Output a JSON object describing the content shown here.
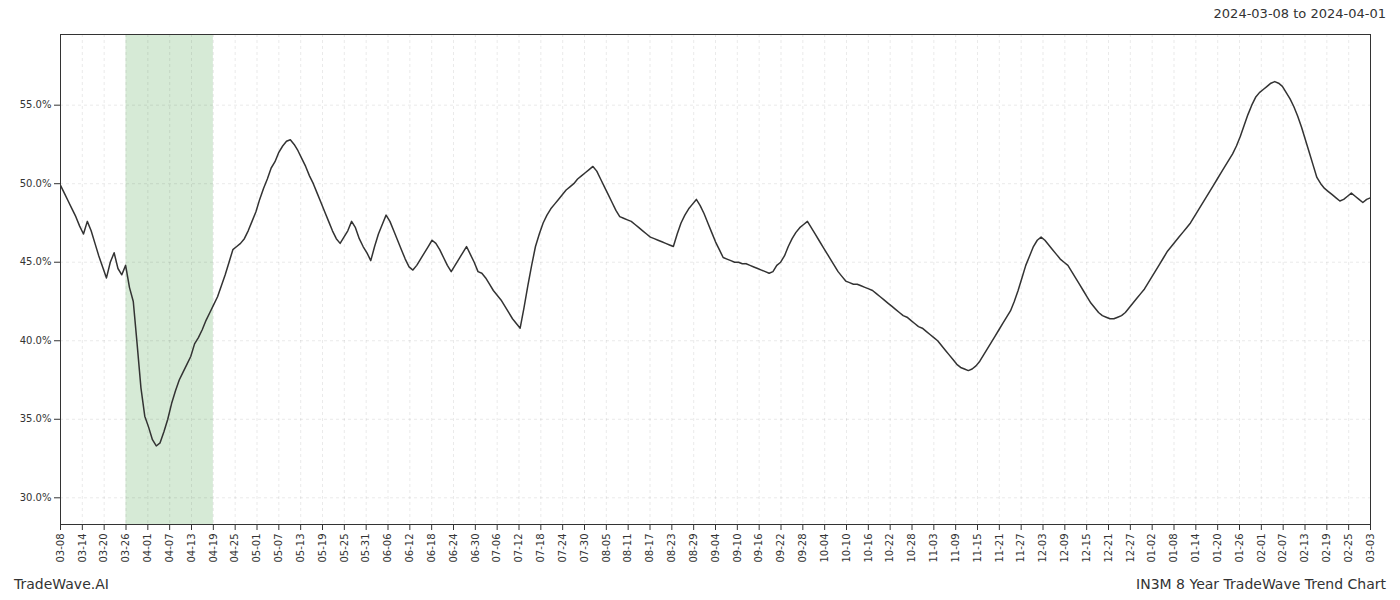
{
  "chart_data": {
    "type": "line",
    "title": "2024-03-08 to 2024-04-01",
    "annotations": [
      "TradeWave.AI",
      "IN3M 8 Year TradeWave Trend Chart"
    ],
    "grid": true,
    "highlight": {
      "x": [
        17.1,
        39.9
      ],
      "color": "#d6ead6"
    },
    "xlim": [
      0,
      342
    ],
    "xticks": [
      {
        "value": 0,
        "label": "03-08"
      },
      {
        "value": 5.7,
        "label": "03-14"
      },
      {
        "value": 11.4,
        "label": "03-20"
      },
      {
        "value": 17.1,
        "label": "03-26"
      },
      {
        "value": 22.8,
        "label": "04-01"
      },
      {
        "value": 28.5,
        "label": "04-07"
      },
      {
        "value": 34.2,
        "label": "04-13"
      },
      {
        "value": 39.9,
        "label": "04-19"
      },
      {
        "value": 45.6,
        "label": "04-25"
      },
      {
        "value": 51.3,
        "label": "05-01"
      },
      {
        "value": 57,
        "label": "05-07"
      },
      {
        "value": 62.7,
        "label": "05-13"
      },
      {
        "value": 68.4,
        "label": "05-19"
      },
      {
        "value": 74.1,
        "label": "05-25"
      },
      {
        "value": 79.8,
        "label": "05-31"
      },
      {
        "value": 85.5,
        "label": "06-06"
      },
      {
        "value": 91.2,
        "label": "06-12"
      },
      {
        "value": 96.9,
        "label": "06-18"
      },
      {
        "value": 102.6,
        "label": "06-24"
      },
      {
        "value": 108.3,
        "label": "06-30"
      },
      {
        "value": 114,
        "label": "07-06"
      },
      {
        "value": 119.7,
        "label": "07-12"
      },
      {
        "value": 125.4,
        "label": "07-18"
      },
      {
        "value": 131.1,
        "label": "07-24"
      },
      {
        "value": 136.8,
        "label": "07-30"
      },
      {
        "value": 142.5,
        "label": "08-05"
      },
      {
        "value": 148.2,
        "label": "08-11"
      },
      {
        "value": 153.9,
        "label": "08-17"
      },
      {
        "value": 159.6,
        "label": "08-23"
      },
      {
        "value": 165.3,
        "label": "08-29"
      },
      {
        "value": 171,
        "label": "09-04"
      },
      {
        "value": 176.7,
        "label": "09-10"
      },
      {
        "value": 182.4,
        "label": "09-16"
      },
      {
        "value": 188.1,
        "label": "09-22"
      },
      {
        "value": 193.8,
        "label": "09-28"
      },
      {
        "value": 199.5,
        "label": "10-04"
      },
      {
        "value": 205.2,
        "label": "10-10"
      },
      {
        "value": 210.9,
        "label": "10-16"
      },
      {
        "value": 216.6,
        "label": "10-22"
      },
      {
        "value": 222.3,
        "label": "10-28"
      },
      {
        "value": 228,
        "label": "11-03"
      },
      {
        "value": 233.7,
        "label": "11-09"
      },
      {
        "value": 239.4,
        "label": "11-15"
      },
      {
        "value": 245.1,
        "label": "11-21"
      },
      {
        "value": 250.8,
        "label": "11-27"
      },
      {
        "value": 256.5,
        "label": "12-03"
      },
      {
        "value": 262.2,
        "label": "12-09"
      },
      {
        "value": 267.9,
        "label": "12-15"
      },
      {
        "value": 273.6,
        "label": "12-21"
      },
      {
        "value": 279.3,
        "label": "12-27"
      },
      {
        "value": 285,
        "label": "01-02"
      },
      {
        "value": 290.7,
        "label": "01-08"
      },
      {
        "value": 296.4,
        "label": "01-14"
      },
      {
        "value": 302.1,
        "label": "01-20"
      },
      {
        "value": 307.8,
        "label": "01-26"
      },
      {
        "value": 313.5,
        "label": "02-01"
      },
      {
        "value": 319.2,
        "label": "02-07"
      },
      {
        "value": 324.9,
        "label": "02-13"
      },
      {
        "value": 330.6,
        "label": "02-19"
      },
      {
        "value": 336.3,
        "label": "02-25"
      },
      {
        "value": 342,
        "label": "03-03"
      }
    ],
    "ylim": [
      0.283,
      0.595
    ],
    "yticks": [
      {
        "value": 0.3,
        "label": "30.0%"
      },
      {
        "value": 0.35,
        "label": "35.0%"
      },
      {
        "value": 0.4,
        "label": "40.0%"
      },
      {
        "value": 0.45,
        "label": "45.0%"
      },
      {
        "value": 0.5,
        "label": "50.0%"
      },
      {
        "value": 0.55,
        "label": "55.0%"
      }
    ],
    "x": [
      0,
      1,
      2,
      3,
      4,
      5,
      6,
      7,
      8,
      9,
      10,
      11,
      12,
      13,
      14,
      15,
      16,
      17,
      18,
      19,
      20,
      21,
      22,
      23,
      24,
      25,
      26,
      27,
      28,
      29,
      30,
      31,
      32,
      33,
      34,
      35,
      36,
      37,
      38,
      39,
      40,
      41,
      42,
      43,
      44,
      45,
      46,
      47,
      48,
      49,
      50,
      51,
      52,
      53,
      54,
      55,
      56,
      57,
      58,
      59,
      60,
      61,
      62,
      63,
      64,
      65,
      66,
      67,
      68,
      69,
      70,
      71,
      72,
      73,
      74,
      75,
      76,
      77,
      78,
      79,
      80,
      81,
      82,
      83,
      84,
      85,
      86,
      87,
      88,
      89,
      90,
      91,
      92,
      93,
      94,
      95,
      96,
      97,
      98,
      99,
      100,
      101,
      102,
      103,
      104,
      105,
      106,
      107,
      108,
      109,
      110,
      111,
      112,
      113,
      114,
      115,
      116,
      117,
      118,
      119,
      120,
      121,
      122,
      123,
      124,
      125,
      126,
      127,
      128,
      129,
      130,
      131,
      132,
      133,
      134,
      135,
      136,
      137,
      138,
      139,
      140,
      141,
      142,
      143,
      144,
      145,
      146,
      147,
      148,
      149,
      150,
      151,
      152,
      153,
      154,
      155,
      156,
      157,
      158,
      159,
      160,
      161,
      162,
      163,
      164,
      165,
      166,
      167,
      168,
      169,
      170,
      171,
      172,
      173,
      174,
      175,
      176,
      177,
      178,
      179,
      180,
      181,
      182,
      183,
      184,
      185,
      186,
      187,
      188,
      189,
      190,
      191,
      192,
      193,
      194,
      195,
      196,
      197,
      198,
      199,
      200,
      201,
      202,
      203,
      204,
      205,
      206,
      207,
      208,
      209,
      210,
      211,
      212,
      213,
      214,
      215,
      216,
      217,
      218,
      219,
      220,
      221,
      222,
      223,
      224,
      225,
      226,
      227,
      228,
      229,
      230,
      231,
      232,
      233,
      234,
      235,
      236,
      237,
      238,
      239,
      240,
      241,
      242,
      243,
      244,
      245,
      246,
      247,
      248,
      249,
      250,
      251,
      252,
      253,
      254,
      255,
      256,
      257,
      258,
      259,
      260,
      261,
      262,
      263,
      264,
      265,
      266,
      267,
      268,
      269,
      270,
      271,
      272,
      273,
      274,
      275,
      276,
      277,
      278,
      279,
      280,
      281,
      282,
      283,
      284,
      285,
      286,
      287,
      288,
      289,
      290,
      291,
      292,
      293,
      294,
      295,
      296,
      297,
      298,
      299,
      300,
      301,
      302,
      303,
      304,
      305,
      306,
      307,
      308,
      309,
      310,
      311,
      312,
      313,
      314,
      315,
      316,
      317,
      318,
      319,
      320,
      321,
      322,
      323,
      324,
      325,
      326,
      327,
      328,
      329,
      330,
      331,
      332,
      333,
      334,
      335,
      336,
      337,
      338,
      339,
      340,
      341,
      342
    ],
    "values": [
      0.499,
      0.494,
      0.489,
      0.484,
      0.479,
      0.473,
      0.468,
      0.476,
      0.47,
      0.462,
      0.454,
      0.447,
      0.44,
      0.45,
      0.456,
      0.446,
      0.442,
      0.448,
      0.434,
      0.425,
      0.398,
      0.37,
      0.352,
      0.345,
      0.337,
      0.333,
      0.335,
      0.342,
      0.35,
      0.36,
      0.368,
      0.375,
      0.38,
      0.385,
      0.39,
      0.398,
      0.402,
      0.407,
      0.413,
      0.418,
      0.423,
      0.428,
      0.435,
      0.442,
      0.45,
      0.458,
      0.46,
      0.462,
      0.465,
      0.47,
      0.476,
      0.482,
      0.49,
      0.497,
      0.503,
      0.51,
      0.514,
      0.52,
      0.524,
      0.527,
      0.528,
      0.525,
      0.521,
      0.516,
      0.511,
      0.505,
      0.5,
      0.494,
      0.488,
      0.482,
      0.476,
      0.47,
      0.465,
      0.462,
      0.466,
      0.47,
      0.476,
      0.472,
      0.465,
      0.46,
      0.456,
      0.451,
      0.46,
      0.468,
      0.474,
      0.48,
      0.476,
      0.47,
      0.464,
      0.458,
      0.452,
      0.447,
      0.445,
      0.448,
      0.452,
      0.456,
      0.46,
      0.464,
      0.462,
      0.458,
      0.453,
      0.448,
      0.444,
      0.448,
      0.452,
      0.456,
      0.46,
      0.455,
      0.45,
      0.444,
      0.443,
      0.44,
      0.436,
      0.432,
      0.429,
      0.426,
      0.422,
      0.418,
      0.414,
      0.411,
      0.408,
      0.421,
      0.435,
      0.448,
      0.46,
      0.468,
      0.475,
      0.48,
      0.484,
      0.487,
      0.49,
      0.493,
      0.496,
      0.498,
      0.5,
      0.503,
      0.505,
      0.507,
      0.509,
      0.511,
      0.508,
      0.503,
      0.498,
      0.493,
      0.488,
      0.483,
      0.479,
      0.478,
      0.477,
      0.476,
      0.474,
      0.472,
      0.47,
      0.468,
      0.466,
      0.465,
      0.464,
      0.463,
      0.462,
      0.461,
      0.46,
      0.468,
      0.475,
      0.48,
      0.484,
      0.487,
      0.49,
      0.486,
      0.481,
      0.475,
      0.469,
      0.463,
      0.458,
      0.453,
      0.452,
      0.451,
      0.45,
      0.45,
      0.449,
      0.449,
      0.448,
      0.447,
      0.446,
      0.445,
      0.444,
      0.443,
      0.444,
      0.448,
      0.45,
      0.454,
      0.46,
      0.465,
      0.469,
      0.472,
      0.474,
      0.476,
      0.472,
      0.468,
      0.464,
      0.46,
      0.456,
      0.452,
      0.448,
      0.444,
      0.441,
      0.438,
      0.437,
      0.436,
      0.436,
      0.435,
      0.434,
      0.433,
      0.432,
      0.43,
      0.428,
      0.426,
      0.424,
      0.422,
      0.42,
      0.418,
      0.416,
      0.415,
      0.413,
      0.411,
      0.409,
      0.408,
      0.406,
      0.404,
      0.402,
      0.4,
      0.397,
      0.394,
      0.391,
      0.388,
      0.385,
      0.383,
      0.382,
      0.381,
      0.382,
      0.384,
      0.387,
      0.391,
      0.395,
      0.399,
      0.403,
      0.407,
      0.411,
      0.415,
      0.419,
      0.425,
      0.432,
      0.44,
      0.448,
      0.454,
      0.46,
      0.464,
      0.466,
      0.464,
      0.461,
      0.458,
      0.455,
      0.452,
      0.45,
      0.448,
      0.444,
      0.44,
      0.436,
      0.432,
      0.428,
      0.424,
      0.421,
      0.418,
      0.416,
      0.415,
      0.414,
      0.414,
      0.415,
      0.416,
      0.418,
      0.421,
      0.424,
      0.427,
      0.43,
      0.433,
      0.437,
      0.441,
      0.445,
      0.449,
      0.453,
      0.457,
      0.46,
      0.463,
      0.466,
      0.469,
      0.472,
      0.475,
      0.479,
      0.483,
      0.487,
      0.491,
      0.495,
      0.499,
      0.503,
      0.507,
      0.511,
      0.515,
      0.519,
      0.524,
      0.53,
      0.537,
      0.544,
      0.55,
      0.555,
      0.558,
      0.56,
      0.562,
      0.564,
      0.565,
      0.564,
      0.562,
      0.558,
      0.554,
      0.549,
      0.543,
      0.536,
      0.528,
      0.52,
      0.512,
      0.504,
      0.5,
      0.497,
      0.495,
      0.493,
      0.491,
      0.489,
      0.49,
      0.492,
      0.494,
      0.492,
      0.49,
      0.488,
      0.49,
      0.491
    ]
  }
}
